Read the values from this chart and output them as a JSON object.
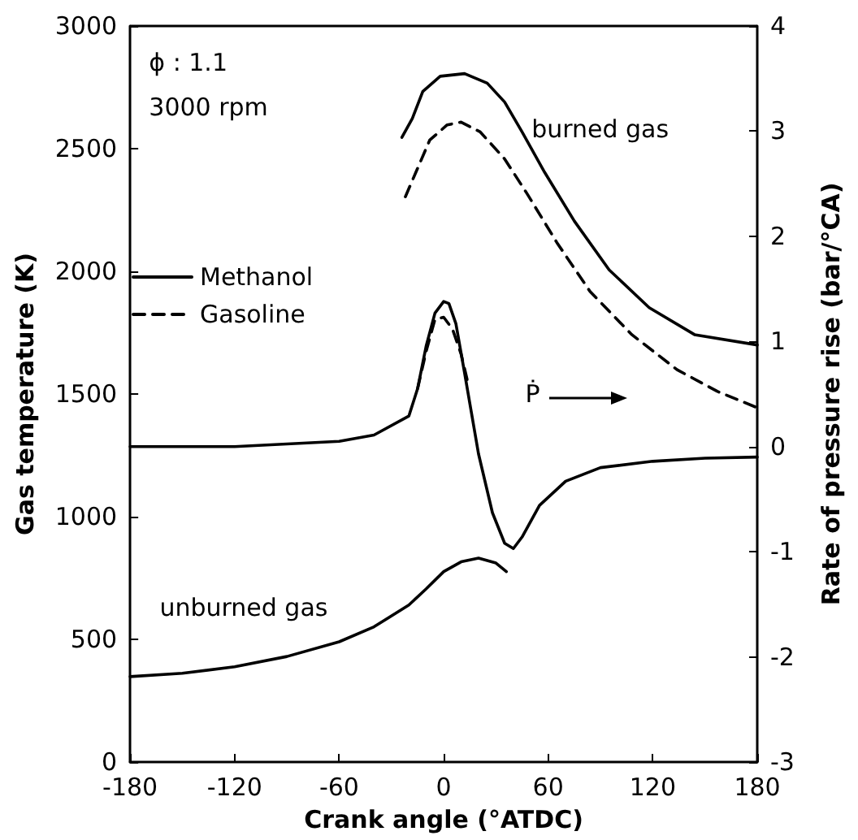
{
  "chart_data": {
    "type": "line",
    "xlabel": "Crank angle (°ATDC)",
    "ylabel": "Gas temperature (K)",
    "y2label": "Rate of pressure rise (bar/°CA)",
    "xlim": [
      -180,
      180
    ],
    "xticks": [
      -180,
      -120,
      -60,
      0,
      60,
      120,
      180
    ],
    "ylim": [
      0,
      3000
    ],
    "yticks": [
      0,
      500,
      1000,
      1500,
      2000,
      2500,
      3000
    ],
    "y2lim": [
      -3,
      4
    ],
    "y2ticks": [
      -3,
      -2,
      -1,
      0,
      1,
      2,
      3,
      4
    ],
    "grid": false,
    "legend": "top left",
    "marker": "none",
    "annotations": [
      "ϕ : 1.1",
      "3000 rpm",
      "burned gas",
      "unburned gas",
      "Ṗ"
    ],
    "series": [
      {
        "name": "Methanol",
        "color": "#000000",
        "line_style": "solid",
        "x": [
          -24,
          -18,
          -12,
          -2,
          12,
          25,
          35,
          45,
          58,
          75,
          95,
          118,
          144,
          180
        ],
        "values": [
          2546,
          2623,
          2733,
          2795,
          2806,
          2767,
          2690,
          2568,
          2403,
          2205,
          2006,
          1852,
          1742,
          1700
        ]
      },
      {
        "name": "Gasoline",
        "color": "#000000",
        "line_style": "dashed",
        "x": [
          -22,
          -16,
          -8,
          2,
          10,
          21,
          35,
          48,
          65,
          84,
          108,
          134,
          157,
          180
        ],
        "values": [
          2304,
          2403,
          2535,
          2597,
          2608,
          2568,
          2458,
          2315,
          2117,
          1918,
          1742,
          1599,
          1511,
          1444
        ]
      },
      {
        "color": "#000000",
        "line_style": "solid",
        "x": [
          -180,
          -150,
          -120,
          -90,
          -60,
          -40,
          -20,
          -10,
          0,
          10,
          20,
          30,
          36
        ],
        "values": [
          348,
          362,
          388,
          430,
          490,
          551,
          640,
          706,
          776,
          816,
          831,
          811,
          776
        ]
      },
      {
        "color": "#000000",
        "line_style": "solid",
        "axis": "y2",
        "x": [
          -180,
          -120,
          -60,
          -40,
          -20,
          -15,
          -10,
          -5,
          0,
          3,
          7,
          12,
          20,
          28,
          35,
          40,
          45,
          55,
          70,
          90,
          120,
          150,
          180
        ],
        "values": [
          0,
          0,
          0.05,
          0.11,
          0.29,
          0.55,
          0.96,
          1.27,
          1.38,
          1.36,
          1.17,
          0.7,
          -0.07,
          -0.63,
          -0.92,
          -0.97,
          -0.86,
          -0.56,
          -0.33,
          -0.2,
          -0.14,
          -0.11,
          -0.1
        ]
      },
      {
        "color": "#000000",
        "line_style": "dashed",
        "axis": "y2",
        "x": [
          -15,
          -10,
          -5,
          0,
          5,
          10,
          14
        ],
        "values": [
          0.55,
          0.91,
          1.21,
          1.23,
          1.12,
          0.88,
          0.6
        ]
      }
    ]
  }
}
